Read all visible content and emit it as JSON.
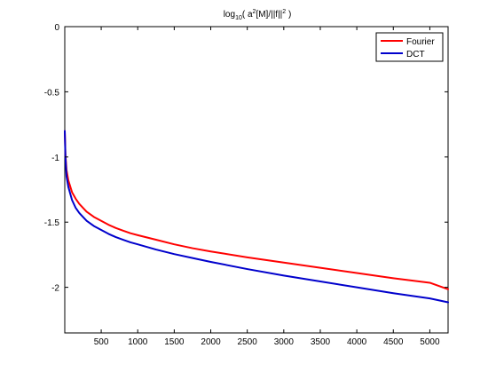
{
  "chart_data": {
    "type": "line",
    "title": {
      "prefix": "log",
      "sub": "10",
      "mid": "( a",
      "sup": "2",
      "suffix": "[M]/||f||",
      "sup2": "2",
      "end": " )"
    },
    "xlabel": "",
    "ylabel": "",
    "xlim": [
      1,
      5250
    ],
    "ylim": [
      -2.35,
      0
    ],
    "xticks": [
      500,
      1000,
      1500,
      2000,
      2500,
      3000,
      3500,
      4000,
      4500,
      5000
    ],
    "yticks": [
      0,
      -0.5,
      -1,
      -1.5,
      -2
    ],
    "xtick_labels": [
      "500",
      "1000",
      "1500",
      "2000",
      "2500",
      "3000",
      "3500",
      "4000",
      "4500",
      "5000"
    ],
    "ytick_labels": [
      "0",
      "-0.5",
      "-1",
      "-1.5",
      "-2"
    ],
    "grid": false,
    "legend_position": "top-right",
    "series": [
      {
        "name": "Fourier",
        "color": "#ff0000",
        "x": [
          1,
          10,
          25,
          50,
          100,
          150,
          200,
          300,
          400,
          500,
          600,
          700,
          800,
          900,
          1000,
          1250,
          1500,
          1750,
          2000,
          2500,
          3000,
          3500,
          4000,
          4500,
          5000,
          5250
        ],
        "y": [
          -0.8,
          -0.98,
          -1.1,
          -1.18,
          -1.27,
          -1.32,
          -1.36,
          -1.42,
          -1.46,
          -1.49,
          -1.52,
          -1.545,
          -1.565,
          -1.585,
          -1.6,
          -1.635,
          -1.67,
          -1.7,
          -1.725,
          -1.77,
          -1.81,
          -1.85,
          -1.89,
          -1.93,
          -1.965,
          -2.015
        ]
      },
      {
        "name": "DCT",
        "color": "#0000cc",
        "x": [
          1,
          10,
          25,
          50,
          100,
          150,
          200,
          300,
          400,
          500,
          600,
          700,
          800,
          900,
          1000,
          1250,
          1500,
          1750,
          2000,
          2500,
          3000,
          3500,
          4000,
          4500,
          5000,
          5250
        ],
        "y": [
          -0.8,
          -1.0,
          -1.15,
          -1.23,
          -1.33,
          -1.39,
          -1.43,
          -1.49,
          -1.53,
          -1.56,
          -1.59,
          -1.615,
          -1.635,
          -1.655,
          -1.67,
          -1.71,
          -1.745,
          -1.775,
          -1.805,
          -1.86,
          -1.91,
          -1.955,
          -2.0,
          -2.045,
          -2.085,
          -2.115
        ]
      }
    ]
  }
}
